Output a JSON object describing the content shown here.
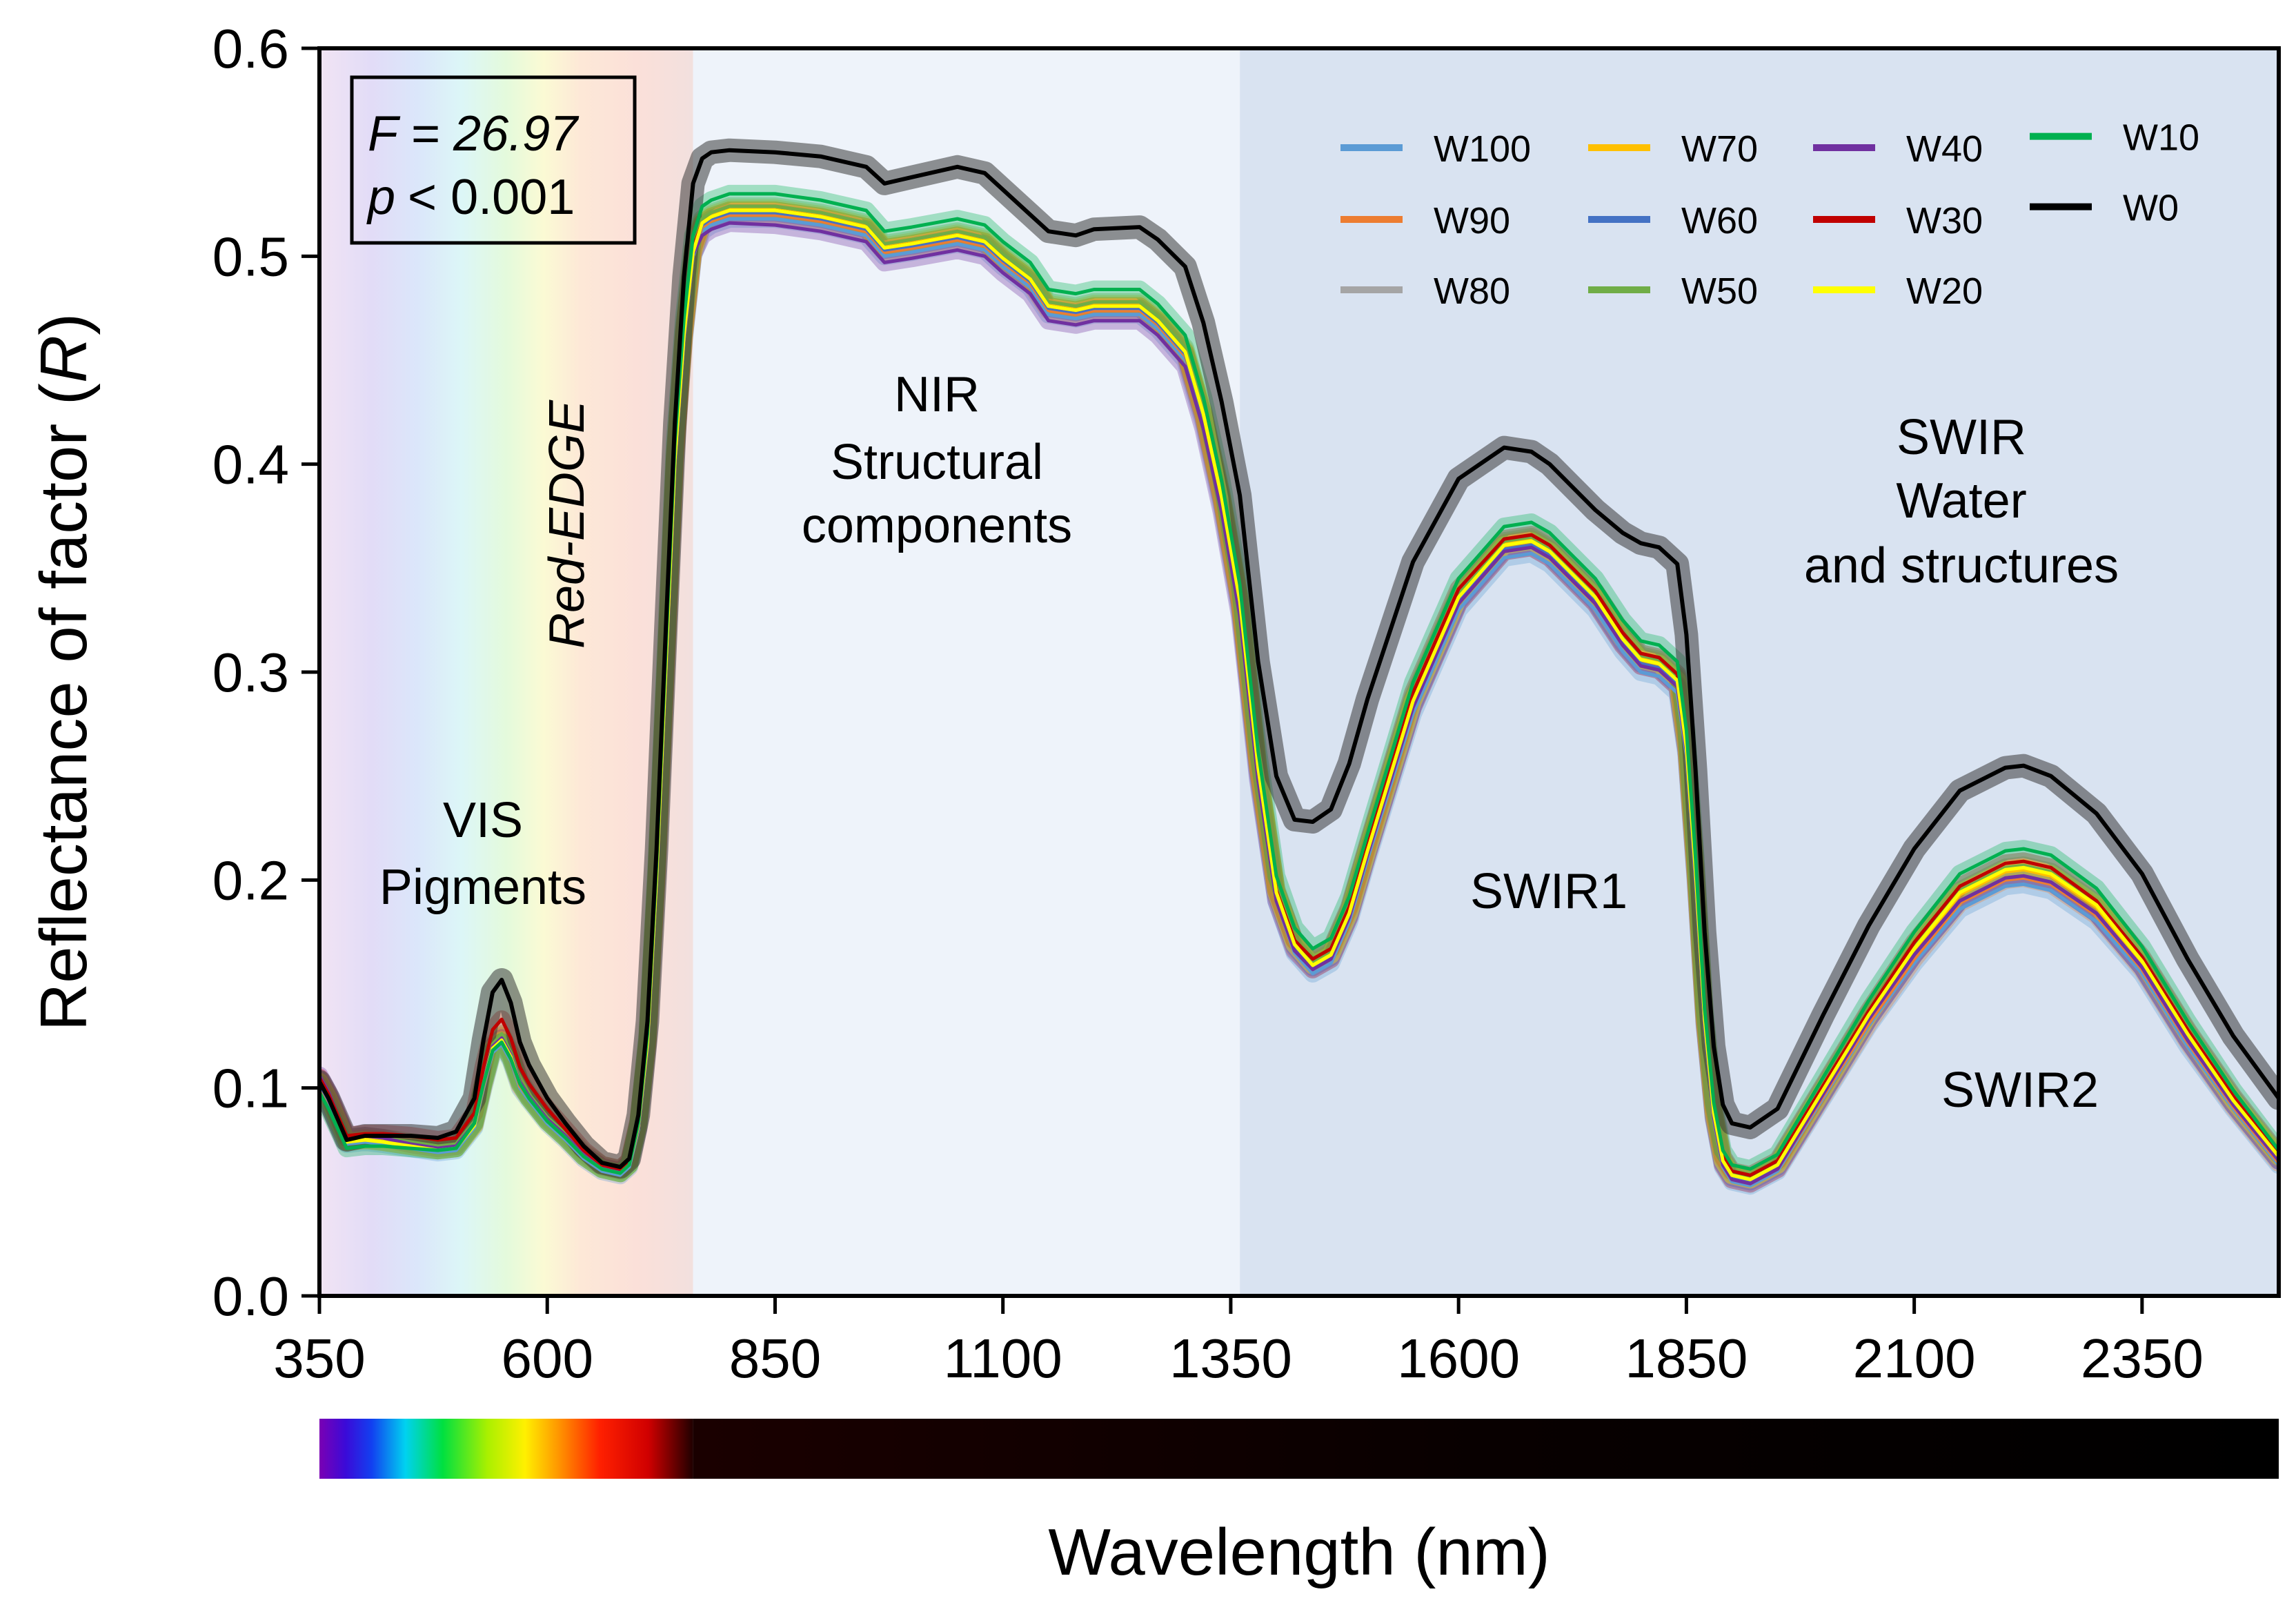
{
  "chart_data": {
    "type": "line",
    "title": "",
    "xlabel": "Wavelength (nm)",
    "ylabel_prefix": "Reflectance of factor (",
    "ylabel_var": "R",
    "ylabel_suffix": ")",
    "xlim": [
      350,
      2500
    ],
    "ylim": [
      0.0,
      0.6
    ],
    "x_ticks": [
      350,
      600,
      850,
      1100,
      1350,
      1600,
      1850,
      2100,
      2350
    ],
    "y_ticks": [
      0.0,
      0.1,
      0.2,
      0.3,
      0.4,
      0.5,
      0.6
    ],
    "x_tick_labels": [
      "350",
      "600",
      "850",
      "1100",
      "1350",
      "1600",
      "1850",
      "2100",
      "2350"
    ],
    "y_tick_labels": [
      "0.0",
      "0.1",
      "0.2",
      "0.3",
      "0.4",
      "0.5",
      "0.6"
    ],
    "grid": false,
    "legend_position": "top-right",
    "regions": [
      {
        "name": "VIS-RedEdge",
        "x_start": 350,
        "x_end": 760,
        "fill": "spectrum"
      },
      {
        "name": "NIR",
        "x_start": 760,
        "x_end": 1360,
        "fill": "#eef3fa"
      },
      {
        "name": "SWIR",
        "x_start": 1360,
        "x_end": 2500,
        "fill": "#d9e3f1"
      }
    ],
    "stats": {
      "f_label": "F",
      "f_value": "= 26.97",
      "p_label": "p",
      "p_value": "< 0.001"
    },
    "annotations": {
      "vis": [
        "VIS",
        "Pigments"
      ],
      "red_edge": "Red-EDGE",
      "nir": [
        "NIR",
        "Structural",
        "components"
      ],
      "swir": [
        "SWIR",
        "Water",
        "and structures"
      ],
      "swir1": "SWIR1",
      "swir2": "SWIR2"
    },
    "x": [
      350,
      360,
      380,
      400,
      420,
      450,
      480,
      500,
      520,
      530,
      540,
      550,
      560,
      570,
      580,
      600,
      620,
      640,
      660,
      680,
      690,
      700,
      710,
      720,
      730,
      740,
      750,
      760,
      770,
      780,
      800,
      850,
      900,
      950,
      970,
      1000,
      1050,
      1080,
      1100,
      1130,
      1150,
      1180,
      1200,
      1250,
      1270,
      1300,
      1320,
      1340,
      1360,
      1380,
      1400,
      1420,
      1440,
      1460,
      1480,
      1500,
      1550,
      1600,
      1650,
      1680,
      1700,
      1750,
      1780,
      1800,
      1820,
      1840,
      1850,
      1860,
      1870,
      1880,
      1890,
      1900,
      1920,
      1950,
      2000,
      2050,
      2100,
      2150,
      2200,
      2220,
      2250,
      2300,
      2350,
      2400,
      2450,
      2500
    ],
    "series": [
      {
        "name": "W100",
        "color": "#5b9bd5",
        "values": [
          0.1,
          0.092,
          0.073,
          0.074,
          0.073,
          0.071,
          0.069,
          0.07,
          0.081,
          0.1,
          0.117,
          0.121,
          0.113,
          0.1,
          0.094,
          0.083,
          0.075,
          0.066,
          0.06,
          0.058,
          0.062,
          0.08,
          0.12,
          0.2,
          0.3,
          0.4,
          0.46,
          0.5,
          0.512,
          0.515,
          0.518,
          0.518,
          0.515,
          0.51,
          0.5,
          0.502,
          0.506,
          0.503,
          0.495,
          0.485,
          0.472,
          0.47,
          0.472,
          0.472,
          0.465,
          0.45,
          0.42,
          0.38,
          0.33,
          0.25,
          0.19,
          0.165,
          0.155,
          0.16,
          0.18,
          0.21,
          0.28,
          0.33,
          0.355,
          0.357,
          0.352,
          0.33,
          0.31,
          0.3,
          0.298,
          0.29,
          0.26,
          0.2,
          0.13,
          0.085,
          0.062,
          0.055,
          0.053,
          0.06,
          0.095,
          0.13,
          0.16,
          0.186,
          0.197,
          0.198,
          0.195,
          0.18,
          0.155,
          0.12,
          0.09,
          0.063
        ]
      },
      {
        "name": "W90",
        "color": "#ed7d31",
        "values": [
          0.101,
          0.093,
          0.074,
          0.075,
          0.074,
          0.072,
          0.07,
          0.071,
          0.082,
          0.101,
          0.118,
          0.122,
          0.114,
          0.101,
          0.095,
          0.084,
          0.076,
          0.067,
          0.061,
          0.059,
          0.063,
          0.081,
          0.121,
          0.201,
          0.301,
          0.401,
          0.461,
          0.501,
          0.514,
          0.517,
          0.52,
          0.52,
          0.517,
          0.512,
          0.502,
          0.504,
          0.508,
          0.505,
          0.497,
          0.487,
          0.474,
          0.472,
          0.474,
          0.474,
          0.467,
          0.452,
          0.422,
          0.382,
          0.332,
          0.252,
          0.192,
          0.167,
          0.157,
          0.162,
          0.182,
          0.212,
          0.283,
          0.333,
          0.358,
          0.36,
          0.355,
          0.333,
          0.313,
          0.303,
          0.301,
          0.293,
          0.262,
          0.202,
          0.131,
          0.086,
          0.063,
          0.056,
          0.054,
          0.061,
          0.096,
          0.131,
          0.162,
          0.189,
          0.2,
          0.201,
          0.198,
          0.183,
          0.157,
          0.122,
          0.091,
          0.064
        ]
      },
      {
        "name": "W80",
        "color": "#a5a5a5",
        "values": [
          0.102,
          0.094,
          0.074,
          0.075,
          0.074,
          0.072,
          0.07,
          0.071,
          0.082,
          0.102,
          0.119,
          0.123,
          0.115,
          0.102,
          0.095,
          0.084,
          0.076,
          0.067,
          0.061,
          0.059,
          0.063,
          0.082,
          0.122,
          0.202,
          0.302,
          0.402,
          0.462,
          0.502,
          0.515,
          0.518,
          0.521,
          0.521,
          0.518,
          0.513,
          0.503,
          0.505,
          0.509,
          0.506,
          0.498,
          0.488,
          0.475,
          0.473,
          0.475,
          0.475,
          0.468,
          0.453,
          0.423,
          0.383,
          0.333,
          0.253,
          0.193,
          0.168,
          0.158,
          0.163,
          0.183,
          0.213,
          0.284,
          0.334,
          0.359,
          0.361,
          0.356,
          0.334,
          0.314,
          0.304,
          0.302,
          0.294,
          0.263,
          0.203,
          0.132,
          0.087,
          0.064,
          0.057,
          0.055,
          0.062,
          0.097,
          0.133,
          0.164,
          0.19,
          0.201,
          0.202,
          0.199,
          0.184,
          0.158,
          0.123,
          0.092,
          0.065
        ]
      },
      {
        "name": "W70",
        "color": "#ffc000",
        "values": [
          0.103,
          0.095,
          0.075,
          0.076,
          0.075,
          0.073,
          0.071,
          0.072,
          0.083,
          0.103,
          0.12,
          0.125,
          0.116,
          0.103,
          0.096,
          0.085,
          0.077,
          0.068,
          0.062,
          0.06,
          0.064,
          0.083,
          0.123,
          0.203,
          0.303,
          0.403,
          0.463,
          0.503,
          0.517,
          0.52,
          0.523,
          0.523,
          0.52,
          0.515,
          0.505,
          0.507,
          0.511,
          0.508,
          0.5,
          0.49,
          0.477,
          0.475,
          0.477,
          0.477,
          0.47,
          0.455,
          0.425,
          0.385,
          0.335,
          0.255,
          0.195,
          0.17,
          0.16,
          0.165,
          0.185,
          0.215,
          0.287,
          0.337,
          0.362,
          0.364,
          0.359,
          0.337,
          0.317,
          0.307,
          0.305,
          0.297,
          0.265,
          0.205,
          0.133,
          0.088,
          0.065,
          0.058,
          0.056,
          0.063,
          0.098,
          0.134,
          0.166,
          0.193,
          0.204,
          0.205,
          0.202,
          0.187,
          0.16,
          0.125,
          0.093,
          0.066
        ]
      },
      {
        "name": "W60",
        "color": "#4472c4",
        "values": [
          0.102,
          0.094,
          0.074,
          0.075,
          0.074,
          0.072,
          0.07,
          0.071,
          0.082,
          0.102,
          0.119,
          0.123,
          0.115,
          0.102,
          0.095,
          0.084,
          0.076,
          0.067,
          0.061,
          0.059,
          0.063,
          0.082,
          0.122,
          0.202,
          0.302,
          0.402,
          0.462,
          0.502,
          0.515,
          0.518,
          0.521,
          0.521,
          0.518,
          0.513,
          0.503,
          0.505,
          0.509,
          0.506,
          0.498,
          0.488,
          0.475,
          0.473,
          0.475,
          0.475,
          0.468,
          0.453,
          0.423,
          0.383,
          0.333,
          0.253,
          0.193,
          0.168,
          0.158,
          0.163,
          0.183,
          0.213,
          0.284,
          0.334,
          0.359,
          0.361,
          0.356,
          0.334,
          0.314,
          0.304,
          0.302,
          0.294,
          0.263,
          0.203,
          0.132,
          0.087,
          0.064,
          0.057,
          0.055,
          0.062,
          0.097,
          0.133,
          0.164,
          0.19,
          0.201,
          0.202,
          0.199,
          0.184,
          0.158,
          0.123,
          0.092,
          0.065
        ]
      },
      {
        "name": "W50",
        "color": "#70ad47",
        "values": [
          0.104,
          0.096,
          0.076,
          0.077,
          0.076,
          0.074,
          0.072,
          0.073,
          0.084,
          0.104,
          0.121,
          0.126,
          0.117,
          0.104,
          0.097,
          0.086,
          0.078,
          0.069,
          0.063,
          0.061,
          0.065,
          0.084,
          0.124,
          0.204,
          0.304,
          0.404,
          0.464,
          0.504,
          0.518,
          0.521,
          0.524,
          0.524,
          0.521,
          0.516,
          0.506,
          0.508,
          0.512,
          0.509,
          0.501,
          0.491,
          0.478,
          0.476,
          0.478,
          0.478,
          0.471,
          0.456,
          0.426,
          0.386,
          0.336,
          0.256,
          0.196,
          0.171,
          0.161,
          0.166,
          0.186,
          0.216,
          0.288,
          0.338,
          0.363,
          0.365,
          0.36,
          0.338,
          0.318,
          0.308,
          0.306,
          0.298,
          0.266,
          0.206,
          0.134,
          0.089,
          0.066,
          0.059,
          0.057,
          0.064,
          0.1,
          0.136,
          0.168,
          0.195,
          0.206,
          0.207,
          0.204,
          0.189,
          0.162,
          0.127,
          0.095,
          0.067
        ]
      },
      {
        "name": "W40",
        "color": "#7030a0",
        "values": [
          0.106,
          0.098,
          0.076,
          0.077,
          0.076,
          0.073,
          0.071,
          0.072,
          0.083,
          0.103,
          0.12,
          0.124,
          0.116,
          0.103,
          0.096,
          0.085,
          0.077,
          0.068,
          0.062,
          0.06,
          0.064,
          0.081,
          0.121,
          0.201,
          0.301,
          0.401,
          0.461,
          0.501,
          0.51,
          0.513,
          0.516,
          0.515,
          0.512,
          0.507,
          0.497,
          0.499,
          0.503,
          0.5,
          0.492,
          0.482,
          0.469,
          0.467,
          0.469,
          0.469,
          0.462,
          0.447,
          0.417,
          0.377,
          0.327,
          0.248,
          0.19,
          0.166,
          0.157,
          0.162,
          0.182,
          0.212,
          0.283,
          0.333,
          0.358,
          0.36,
          0.355,
          0.333,
          0.313,
          0.303,
          0.301,
          0.293,
          0.262,
          0.202,
          0.131,
          0.086,
          0.063,
          0.056,
          0.054,
          0.061,
          0.097,
          0.133,
          0.164,
          0.19,
          0.201,
          0.202,
          0.199,
          0.184,
          0.158,
          0.123,
          0.092,
          0.065
        ]
      },
      {
        "name": "W30",
        "color": "#c00000",
        "values": [
          0.105,
          0.097,
          0.077,
          0.078,
          0.078,
          0.077,
          0.075,
          0.076,
          0.088,
          0.11,
          0.128,
          0.133,
          0.124,
          0.11,
          0.102,
          0.09,
          0.08,
          0.07,
          0.063,
          0.061,
          0.065,
          0.084,
          0.124,
          0.204,
          0.304,
          0.404,
          0.464,
          0.504,
          0.516,
          0.519,
          0.522,
          0.522,
          0.519,
          0.514,
          0.504,
          0.506,
          0.51,
          0.507,
          0.499,
          0.489,
          0.476,
          0.474,
          0.476,
          0.476,
          0.469,
          0.454,
          0.424,
          0.384,
          0.334,
          0.254,
          0.195,
          0.171,
          0.162,
          0.167,
          0.187,
          0.217,
          0.29,
          0.34,
          0.364,
          0.366,
          0.361,
          0.339,
          0.319,
          0.309,
          0.307,
          0.299,
          0.267,
          0.207,
          0.135,
          0.09,
          0.067,
          0.06,
          0.058,
          0.065,
          0.101,
          0.137,
          0.17,
          0.197,
          0.208,
          0.209,
          0.206,
          0.19,
          0.163,
          0.128,
          0.096,
          0.068
        ]
      },
      {
        "name": "W20",
        "color": "#ffff00",
        "values": [
          0.103,
          0.095,
          0.074,
          0.075,
          0.074,
          0.072,
          0.07,
          0.071,
          0.082,
          0.102,
          0.119,
          0.123,
          0.115,
          0.102,
          0.095,
          0.084,
          0.076,
          0.067,
          0.061,
          0.059,
          0.063,
          0.082,
          0.122,
          0.202,
          0.302,
          0.402,
          0.462,
          0.502,
          0.516,
          0.519,
          0.522,
          0.522,
          0.519,
          0.514,
          0.504,
          0.506,
          0.51,
          0.507,
          0.499,
          0.489,
          0.476,
          0.474,
          0.476,
          0.476,
          0.469,
          0.454,
          0.424,
          0.384,
          0.334,
          0.254,
          0.194,
          0.169,
          0.159,
          0.164,
          0.184,
          0.214,
          0.286,
          0.336,
          0.361,
          0.363,
          0.358,
          0.336,
          0.316,
          0.306,
          0.304,
          0.296,
          0.264,
          0.204,
          0.133,
          0.088,
          0.065,
          0.058,
          0.056,
          0.063,
          0.099,
          0.135,
          0.167,
          0.194,
          0.205,
          0.206,
          0.203,
          0.188,
          0.161,
          0.126,
          0.094,
          0.067
        ]
      },
      {
        "name": "W10",
        "color": "#00b050",
        "values": [
          0.098,
          0.09,
          0.071,
          0.072,
          0.072,
          0.071,
          0.07,
          0.071,
          0.083,
          0.102,
          0.118,
          0.122,
          0.114,
          0.102,
          0.095,
          0.084,
          0.076,
          0.067,
          0.061,
          0.059,
          0.063,
          0.083,
          0.126,
          0.208,
          0.31,
          0.41,
          0.47,
          0.51,
          0.524,
          0.527,
          0.53,
          0.53,
          0.527,
          0.522,
          0.512,
          0.514,
          0.518,
          0.515,
          0.507,
          0.497,
          0.484,
          0.482,
          0.484,
          0.484,
          0.477,
          0.462,
          0.432,
          0.392,
          0.342,
          0.262,
          0.202,
          0.177,
          0.167,
          0.172,
          0.192,
          0.222,
          0.295,
          0.345,
          0.37,
          0.372,
          0.367,
          0.345,
          0.325,
          0.315,
          0.313,
          0.305,
          0.272,
          0.211,
          0.138,
          0.093,
          0.07,
          0.063,
          0.061,
          0.068,
          0.105,
          0.142,
          0.175,
          0.203,
          0.214,
          0.215,
          0.212,
          0.196,
          0.168,
          0.132,
          0.099,
          0.07
        ]
      },
      {
        "name": "W0",
        "color": "#000000",
        "values": [
          0.103,
          0.095,
          0.075,
          0.077,
          0.077,
          0.077,
          0.076,
          0.079,
          0.095,
          0.123,
          0.146,
          0.152,
          0.141,
          0.122,
          0.111,
          0.095,
          0.083,
          0.072,
          0.064,
          0.062,
          0.066,
          0.087,
          0.132,
          0.215,
          0.32,
          0.42,
          0.49,
          0.535,
          0.547,
          0.55,
          0.551,
          0.55,
          0.548,
          0.543,
          0.535,
          0.538,
          0.543,
          0.54,
          0.532,
          0.52,
          0.512,
          0.51,
          0.513,
          0.514,
          0.508,
          0.495,
          0.468,
          0.43,
          0.385,
          0.305,
          0.25,
          0.229,
          0.228,
          0.234,
          0.256,
          0.287,
          0.353,
          0.393,
          0.408,
          0.406,
          0.4,
          0.378,
          0.367,
          0.362,
          0.36,
          0.352,
          0.318,
          0.253,
          0.175,
          0.12,
          0.092,
          0.083,
          0.081,
          0.09,
          0.135,
          0.178,
          0.215,
          0.243,
          0.254,
          0.255,
          0.25,
          0.232,
          0.203,
          0.162,
          0.125,
          0.095
        ]
      }
    ]
  }
}
